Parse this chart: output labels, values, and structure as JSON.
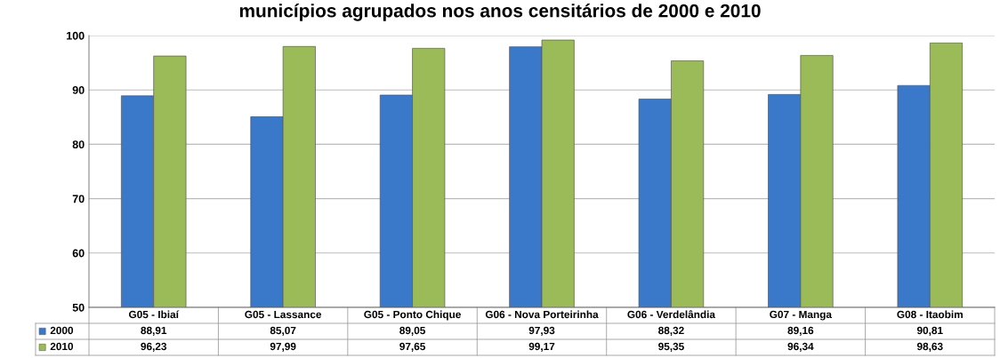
{
  "chart_data": {
    "type": "bar",
    "title": "municípios agrupados nos anos censitários de 2000 e 2010",
    "categories": [
      "G05 - Ibiaí",
      "G05 - Lassance",
      "G05 - Ponto Chique",
      "G06 - Nova Porteirinha",
      "G06 - Verdelândia",
      "G07 - Manga",
      "G08 - Itaobim"
    ],
    "series": [
      {
        "name": "2000",
        "color": "#3a78c9",
        "values": [
          88.91,
          85.07,
          89.05,
          97.93,
          88.32,
          89.16,
          90.81
        ],
        "value_labels": [
          "88,91",
          "85,07",
          "89,05",
          "97,93",
          "88,32",
          "89,16",
          "90,81"
        ]
      },
      {
        "name": "2010",
        "color": "#9bbb59",
        "values": [
          96.23,
          97.99,
          97.65,
          99.17,
          95.35,
          96.34,
          98.63
        ],
        "value_labels": [
          "96,23",
          "97,99",
          "97,65",
          "99,17",
          "95,35",
          "96,34",
          "98,63"
        ]
      }
    ],
    "ylim": [
      50,
      100
    ],
    "yticks": [
      50,
      60,
      70,
      80,
      90,
      100
    ],
    "grid": "y",
    "legend": "bottom"
  }
}
